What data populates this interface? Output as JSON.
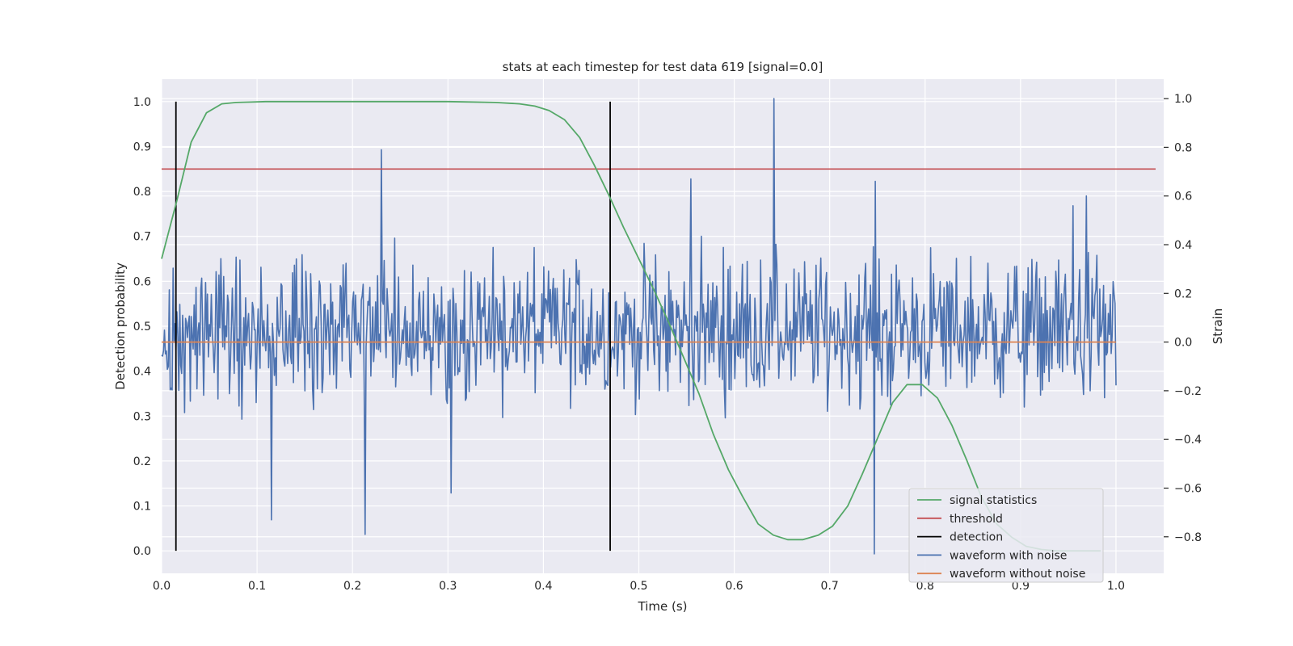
{
  "chart_data": {
    "type": "line",
    "title": "stats at each timestep for test data 619 [signal=0.0]",
    "xlabel": "Time (s)",
    "ylabel": "Detection probability",
    "ylabel_right": "Strain",
    "xlim": [
      0.0,
      1.05
    ],
    "ylim": [
      -0.05,
      1.05
    ],
    "ylim_right": [
      -0.95,
      1.08
    ],
    "xticks": [
      "0.0",
      "0.1",
      "0.2",
      "0.3",
      "0.4",
      "0.5",
      "0.6",
      "0.7",
      "0.8",
      "0.9",
      "1.0"
    ],
    "yticks": [
      "0.0",
      "0.1",
      "0.2",
      "0.3",
      "0.4",
      "0.5",
      "0.6",
      "0.7",
      "0.8",
      "0.9",
      "1.0"
    ],
    "yticks_right": [
      "−0.8",
      "−0.6",
      "−0.4",
      "−0.2",
      "0.0",
      "0.2",
      "0.4",
      "0.6",
      "0.8",
      "1.0"
    ],
    "grid": true,
    "legend_position": "bottom-right",
    "legend": [
      "signal statistics",
      "threshold",
      "detection",
      "waveform with noise",
      "waveform without noise"
    ],
    "colors": {
      "signal_statistics": "#55a868",
      "threshold": "#c44e52",
      "detection": "#000000",
      "waveform_with_noise": "#4c72b0",
      "waveform_without_noise": "#dd8452"
    },
    "signal_statistics": {
      "x": [
        0.0,
        0.016,
        0.031,
        0.047,
        0.063,
        0.078,
        0.094,
        0.109,
        0.125,
        0.2,
        0.3,
        0.35,
        0.375,
        0.391,
        0.406,
        0.422,
        0.438,
        0.453,
        0.469,
        0.484,
        0.5,
        0.516,
        0.531,
        0.547,
        0.563,
        0.578,
        0.594,
        0.609,
        0.625,
        0.641,
        0.656,
        0.672,
        0.688,
        0.703,
        0.719,
        0.734,
        0.75,
        0.766,
        0.781,
        0.797,
        0.813,
        0.828,
        0.844,
        0.859,
        0.875,
        0.891,
        0.906,
        0.922,
        0.938,
        0.953,
        0.969,
        0.984
      ],
      "y": [
        0.65,
        0.78,
        0.91,
        0.975,
        0.995,
        0.998,
        0.999,
        1.0,
        1.0,
        1.0,
        1.0,
        0.998,
        0.995,
        0.99,
        0.98,
        0.96,
        0.92,
        0.86,
        0.79,
        0.72,
        0.65,
        0.58,
        0.51,
        0.43,
        0.35,
        0.26,
        0.18,
        0.12,
        0.06,
        0.035,
        0.025,
        0.025,
        0.035,
        0.055,
        0.1,
        0.17,
        0.25,
        0.33,
        0.37,
        0.37,
        0.34,
        0.28,
        0.2,
        0.12,
        0.06,
        0.03,
        0.01,
        0.003,
        0.0,
        0.0,
        0.0,
        0.0
      ]
    },
    "threshold": {
      "y": 0.85
    },
    "detections": [
      0.015,
      0.47
    ],
    "waveform_without_noise": {
      "x": [
        0.0,
        1.0
      ],
      "y": [
        0.0,
        0.0
      ]
    },
    "waveform_with_noise": {
      "n_points": 1000,
      "x_range": [
        0.0,
        1.0
      ],
      "typical_range": [
        -0.35,
        0.45
      ],
      "spikes": [
        {
          "x": 0.23,
          "y": 0.79
        },
        {
          "x": 0.642,
          "y": 1.0
        },
        {
          "x": 0.555,
          "y": 0.67
        },
        {
          "x": 0.747,
          "y": -0.87
        },
        {
          "x": 0.748,
          "y": 0.66
        },
        {
          "x": 0.213,
          "y": -0.79
        },
        {
          "x": 0.115,
          "y": -0.73
        },
        {
          "x": 0.303,
          "y": -0.62
        },
        {
          "x": 0.955,
          "y": 0.56
        },
        {
          "x": 0.969,
          "y": 0.6
        }
      ]
    }
  }
}
